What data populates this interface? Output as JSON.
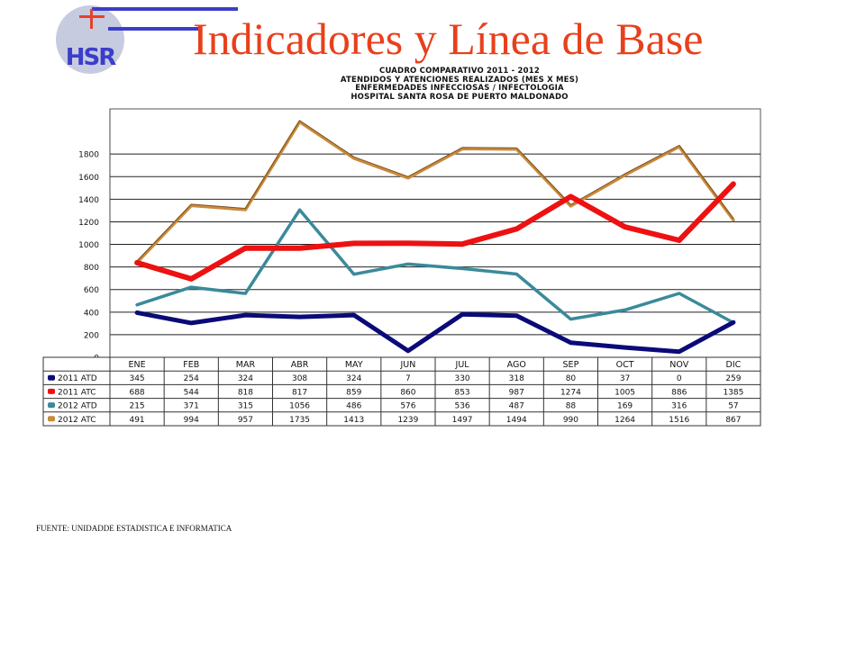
{
  "slide": {
    "title": "Indicadores y Línea de Base",
    "logo_text": "HSR",
    "source": "FUENTE: UNIDADDE ESTADISTICA E INFORMATICA"
  },
  "colors": {
    "title": "#e8401c",
    "logo_blue": "#3b3ec9",
    "logo_red": "#e8402a",
    "logo_circle": "#c7cbe0",
    "series_2011_atd": "#0a0a78",
    "series_2011_atc": "#ee1111",
    "series_2012_atd": "#3a8a9a",
    "series_2012_atc": "#c98a3c"
  },
  "chart_data": {
    "type": "line",
    "title_lines": [
      "CUADRO COMPARATIVO 2011 - 2012",
      "ATENDIDOS Y ATENCIONES  REALIZADOS (MES X MES)",
      "ENFERMEDADES INFECCIOSAS / INFECTOLOGIA",
      "HOSPITAL SANTA ROSA DE PUERTO MALDONADO"
    ],
    "categories": [
      "ENE",
      "FEB",
      "MAR",
      "ABR",
      "MAY",
      "JUN",
      "JUL",
      "AGO",
      "SEP",
      "OCT",
      "NOV",
      "DIC"
    ],
    "ylim": [
      0,
      2200
    ],
    "yticks": [
      0,
      200,
      400,
      600,
      800,
      1000,
      1200,
      1400,
      1600,
      1800
    ],
    "grid": true,
    "legend_placement": "table-left",
    "series": [
      {
        "name": "2011 ATD",
        "color_key": "series_2011_atd",
        "table_values": [
          "345",
          "254",
          "324",
          "308",
          "324",
          "7",
          "330",
          "318",
          "80",
          "37",
          "0",
          "259"
        ],
        "plotted_values": [
          395,
          304,
          374,
          358,
          374,
          57,
          380,
          368,
          130,
          87,
          50,
          309
        ]
      },
      {
        "name": "2011 ATC",
        "color_key": "series_2011_atc",
        "table_values": [
          "688",
          "544",
          "818",
          "817",
          "859",
          "860",
          "853",
          "987",
          "1274",
          "1005",
          "886",
          "1385"
        ],
        "plotted_values": [
          838,
          694,
          968,
          967,
          1009,
          1010,
          1003,
          1137,
          1424,
          1155,
          1036,
          1535
        ]
      },
      {
        "name": "2012 ATD",
        "color_key": "series_2012_atd",
        "table_values": [
          "215",
          "371",
          "315",
          "1056",
          "486",
          "576",
          "536",
          "487",
          "88",
          "169",
          "316",
          "57"
        ],
        "plotted_values": [
          465,
          621,
          565,
          1306,
          736,
          826,
          786,
          737,
          338,
          419,
          566,
          307
        ]
      },
      {
        "name": "2012 ATC",
        "color_key": "series_2012_atc",
        "table_values": [
          "491",
          "994",
          "957",
          "1735",
          "1413",
          "1239",
          "1497",
          "1494",
          "990",
          "1264",
          "1516",
          "867"
        ],
        "plotted_values": [
          841,
          1344,
          1307,
          2085,
          1763,
          1589,
          1847,
          1844,
          1340,
          1614,
          1866,
          1217
        ]
      }
    ]
  }
}
